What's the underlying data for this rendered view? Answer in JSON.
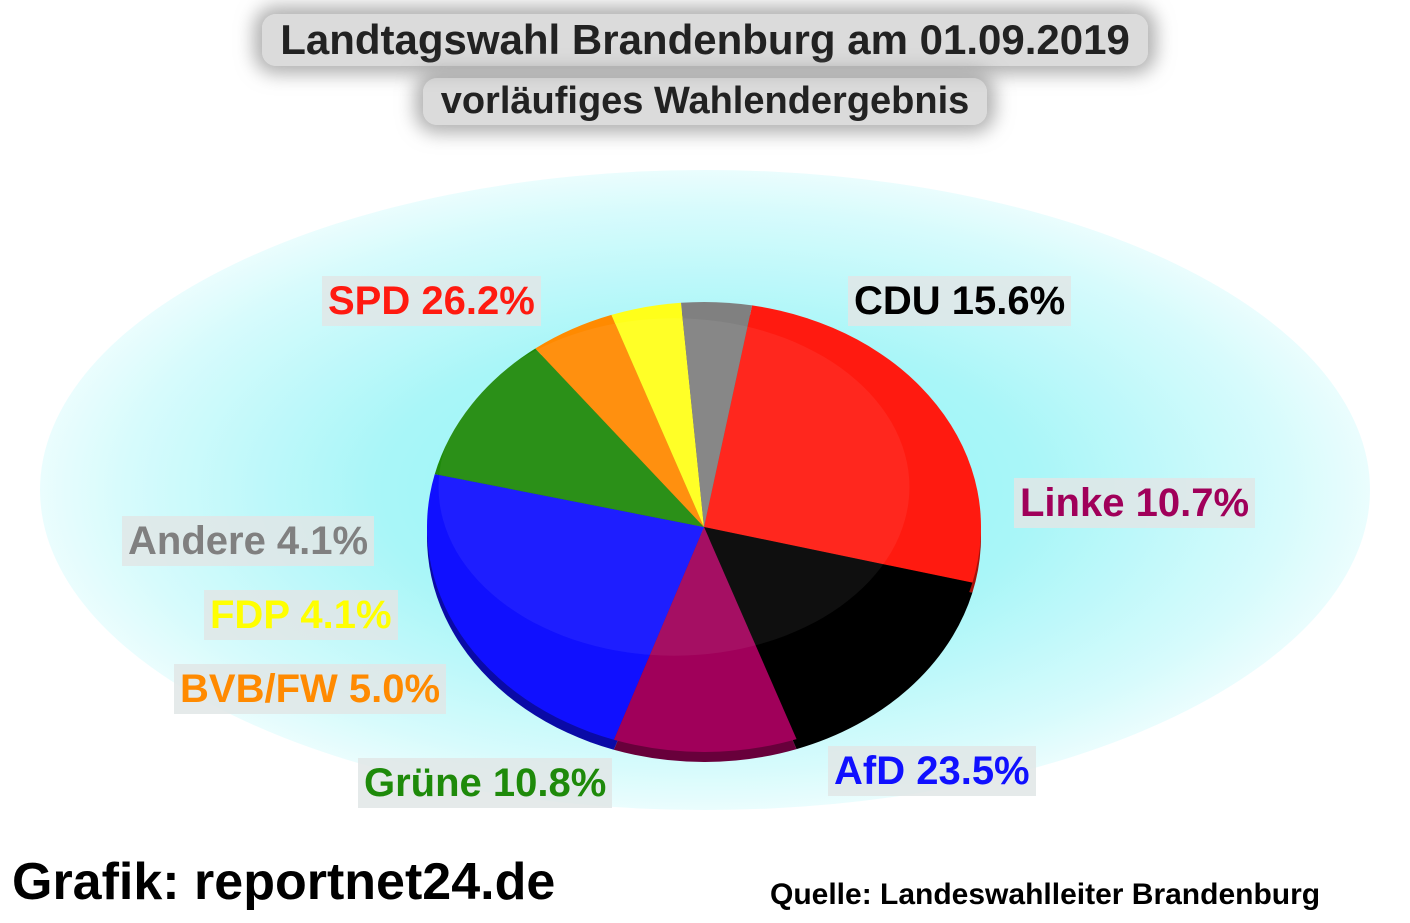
{
  "chart_data": {
    "type": "pie",
    "title": "Landtagswahl Brandenburg am 01.09.2019",
    "subtitle": "vorläufiges Wahlendergebnis",
    "slices": [
      {
        "label": "SPD 26.2%",
        "name": "SPD",
        "value": 26.2,
        "color": "#ff1a10"
      },
      {
        "label": "CDU 15.6%",
        "name": "CDU",
        "value": 15.6,
        "color": "#000000"
      },
      {
        "label": "Linke 10.7%",
        "name": "Linke",
        "value": 10.7,
        "color": "#a0005a"
      },
      {
        "label": "AfD 23.5%",
        "name": "AfD",
        "value": 23.5,
        "color": "#1010ff"
      },
      {
        "label": "Grüne 10.8%",
        "name": "Grüne",
        "value": 10.8,
        "color": "#1e8a0a"
      },
      {
        "label": "BVB/FW 5.0%",
        "name": "BVB/FW",
        "value": 5.0,
        "color": "#ff8a00"
      },
      {
        "label": "FDP 4.1%",
        "name": "FDP",
        "value": 4.1,
        "color": "#ffff1a"
      },
      {
        "label": "Andere 4.1%",
        "name": "Andere",
        "value": 4.1,
        "color": "#808080"
      }
    ]
  },
  "labels_colors": {
    "SPD": "#ff1a10",
    "CDU": "#000000",
    "Linke": "#a0005a",
    "AfD": "#1010ff",
    "Grüne": "#1e8a0a",
    "BVB/FW": "#ff8a00",
    "FDP": "#ffff1a",
    "Andere": "#808080"
  },
  "footer": {
    "credit": "Grafik: reportnet24.de",
    "source": "Quelle: Landeswahlleiter Brandenburg"
  }
}
